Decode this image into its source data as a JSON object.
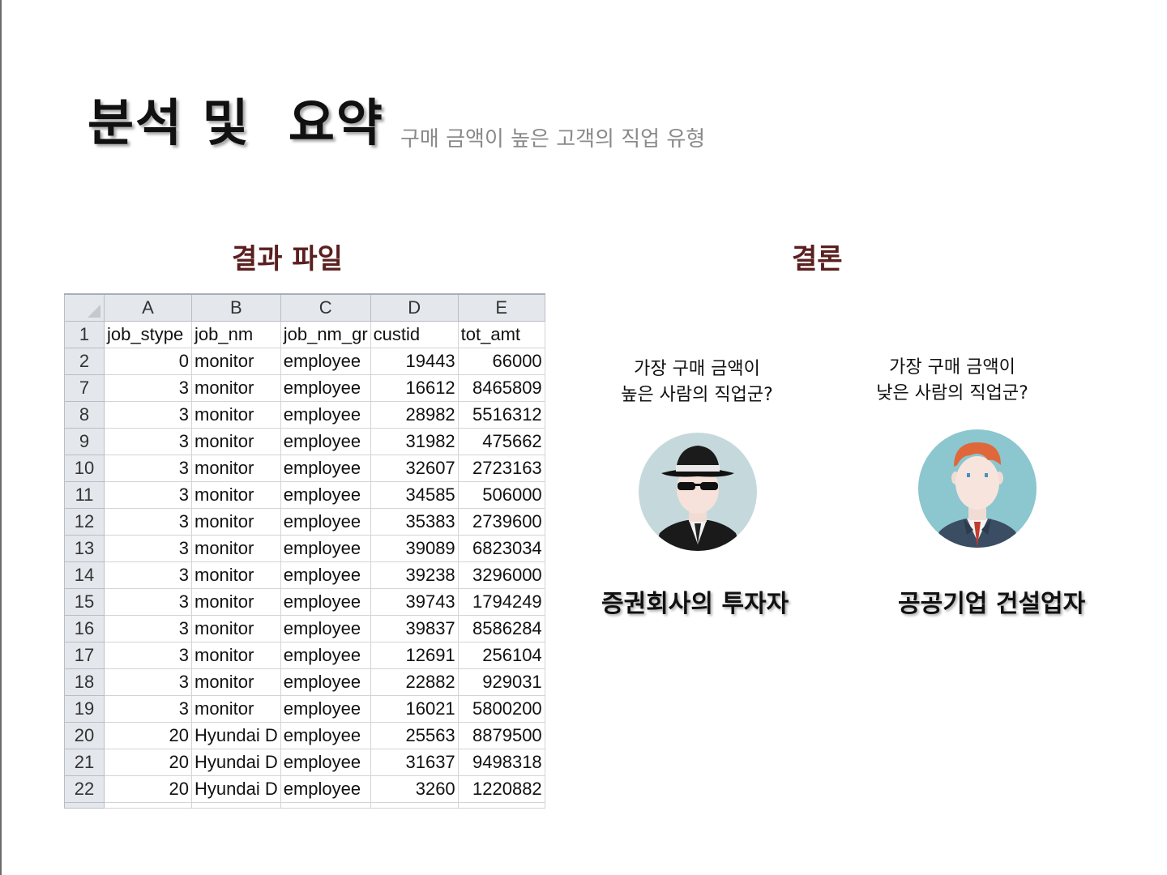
{
  "title": {
    "main": "분석 및  요약",
    "subtitle": "구매 금액이 높은 고객의 직업 유형"
  },
  "left_heading": "결과 파일",
  "right_heading": "결론",
  "spreadsheet": {
    "columns": [
      "A",
      "B",
      "C",
      "D",
      "E"
    ],
    "rows": [
      {
        "row": "1",
        "cells": [
          "job_stype",
          "job_nm",
          "job_nm_gr",
          "custid",
          "tot_amt"
        ]
      },
      {
        "row": "2",
        "cells": [
          "0",
          "monitor",
          "employee",
          "19443",
          "66000"
        ]
      },
      {
        "row": "7",
        "cells": [
          "3",
          "monitor",
          "employee",
          "16612",
          "8465809"
        ]
      },
      {
        "row": "8",
        "cells": [
          "3",
          "monitor",
          "employee",
          "28982",
          "5516312"
        ]
      },
      {
        "row": "9",
        "cells": [
          "3",
          "monitor",
          "employee",
          "31982",
          "475662"
        ]
      },
      {
        "row": "10",
        "cells": [
          "3",
          "monitor",
          "employee",
          "32607",
          "2723163"
        ]
      },
      {
        "row": "11",
        "cells": [
          "3",
          "monitor",
          "employee",
          "34585",
          "506000"
        ]
      },
      {
        "row": "12",
        "cells": [
          "3",
          "monitor",
          "employee",
          "35383",
          "2739600"
        ]
      },
      {
        "row": "13",
        "cells": [
          "3",
          "monitor",
          "employee",
          "39089",
          "6823034"
        ]
      },
      {
        "row": "14",
        "cells": [
          "3",
          "monitor",
          "employee",
          "39238",
          "3296000"
        ]
      },
      {
        "row": "15",
        "cells": [
          "3",
          "monitor",
          "employee",
          "39743",
          "1794249"
        ]
      },
      {
        "row": "16",
        "cells": [
          "3",
          "monitor",
          "employee",
          "39837",
          "8586284"
        ]
      },
      {
        "row": "17",
        "cells": [
          "3",
          "monitor",
          "employee",
          "12691",
          "256104"
        ]
      },
      {
        "row": "18",
        "cells": [
          "3",
          "monitor",
          "employee",
          "22882",
          "929031"
        ]
      },
      {
        "row": "19",
        "cells": [
          "3",
          "monitor",
          "employee",
          "16021",
          "5800200"
        ]
      },
      {
        "row": "20",
        "cells": [
          "20",
          "Hyundai D",
          "employee",
          "25563",
          "8879500"
        ]
      },
      {
        "row": "21",
        "cells": [
          "20",
          "Hyundai D",
          "employee",
          "31637",
          "9498318"
        ]
      },
      {
        "row": "22",
        "cells": [
          "20",
          "Hyundai D",
          "employee",
          "3260",
          "1220882"
        ]
      }
    ]
  },
  "conclusion": {
    "high": {
      "question_line1": "가장 구매 금액이",
      "question_line2": "높은 사람의 직업군?",
      "answer": "증권회사의 투자자",
      "icon": "spy-avatar-icon"
    },
    "low": {
      "question_line1": "가장 구매 금액이",
      "question_line2": "낮은 사람의 직업군?",
      "answer": "공공기업 건설업자",
      "icon": "businessman-avatar-icon"
    }
  },
  "colors": {
    "heading": "#5a1f1f",
    "sheet_header": "#e4e7ec",
    "spy_bg": "#c5d9dc",
    "businessman_bg": "#8cc6ce"
  }
}
